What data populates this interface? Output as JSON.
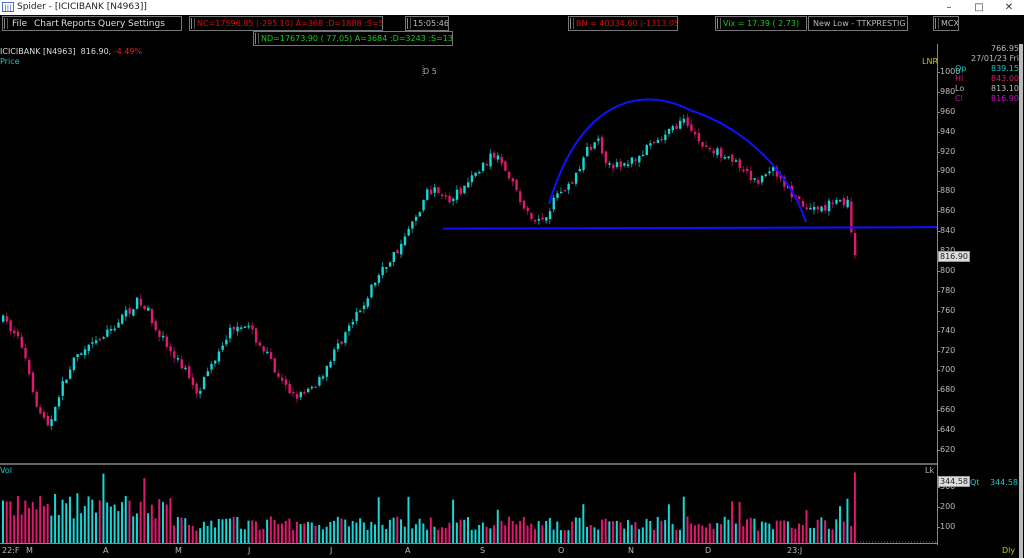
{
  "window": {
    "title": "Spider - [ICICIBANK [N4963]]",
    "app_icon": "spider-app-icon",
    "controls": [
      "minimize",
      "maximize",
      "close"
    ]
  },
  "menu": {
    "items": [
      {
        "label": "File",
        "accel": "F"
      },
      {
        "label": "Chart",
        "accel": "C"
      },
      {
        "label": "Reports",
        "accel": "R"
      },
      {
        "label": "Query",
        "accel": "Q"
      },
      {
        "label": "Settings",
        "accel": "S"
      }
    ]
  },
  "tickers": {
    "nc": "NC=17596.85 (-295.10) A=368 :D=1888 :S=58",
    "nd": "ND=17673.90 (  77.05) A=3684 :D=3243 :S=138",
    "time": "15:05:46",
    "bn": "BN = 40334.60 (-1313.05)",
    "vix": "Vix =   17.39 (   2.73)",
    "scanner": "New Low - TTKPRESTIG",
    "exchange": "MCX"
  },
  "chart": {
    "symbol": "ICICIBANK [N4963]",
    "last": "816.90,",
    "change_pct": "-4.49%",
    "price_label": "Price",
    "volume_label": "Vol",
    "lnr_label": "LNR",
    "lk_label": "Lk",
    "dly_label": "Dly",
    "cursor_label": "D 5",
    "last_price_badge": "816.90",
    "last_volume_badge": "344.58",
    "colors": {
      "up": "#19d6d6",
      "down": "#e0186e",
      "trendline": "#1010ff",
      "background": "#000000"
    }
  },
  "info_panel": {
    "top_value": "766.95",
    "date": "27/01/23 Fri",
    "open_label": "Op",
    "open": "839.15",
    "high_label": "Hi",
    "high": "843.00",
    "low_label": "Lo",
    "low": "813.10",
    "close_label": "Cl",
    "close": "816.90",
    "qty_label": "Qt",
    "qty": "344.58"
  },
  "chart_data": {
    "type": "candlestick",
    "title": "ICICIBANK [N4963] daily",
    "y_axis": {
      "ticks": [
        1000,
        980,
        960,
        940,
        920,
        900,
        880,
        860,
        840,
        820,
        800,
        780,
        760,
        740,
        720,
        700,
        680,
        660,
        640,
        620
      ],
      "range": [
        612,
        1028
      ]
    },
    "volume_axis": {
      "ticks": [
        100,
        200,
        300
      ],
      "unit": "Lk"
    },
    "x_axis": {
      "labels": [
        "22:F",
        "M",
        "A",
        "M",
        "J",
        "J",
        "A",
        "S",
        "O",
        "N",
        "D",
        "23:J"
      ]
    },
    "price_path_keypoints": [
      [
        0,
        752
      ],
      [
        8,
        735
      ],
      [
        12,
        720
      ],
      [
        16,
        690
      ],
      [
        20,
        660
      ],
      [
        26,
        645
      ],
      [
        32,
        680
      ],
      [
        40,
        710
      ],
      [
        50,
        725
      ],
      [
        60,
        740
      ],
      [
        70,
        760
      ],
      [
        76,
        770
      ],
      [
        82,
        760
      ],
      [
        88,
        740
      ],
      [
        96,
        715
      ],
      [
        104,
        700
      ],
      [
        110,
        680
      ],
      [
        116,
        700
      ],
      [
        124,
        730
      ],
      [
        130,
        745
      ],
      [
        136,
        750
      ],
      [
        142,
        735
      ],
      [
        150,
        715
      ],
      [
        156,
        690
      ],
      [
        162,
        680
      ],
      [
        170,
        675
      ],
      [
        178,
        690
      ],
      [
        186,
        715
      ],
      [
        194,
        740
      ],
      [
        202,
        760
      ],
      [
        210,
        790
      ],
      [
        218,
        810
      ],
      [
        226,
        830
      ],
      [
        232,
        850
      ],
      [
        240,
        880
      ],
      [
        246,
        885
      ],
      [
        252,
        870
      ],
      [
        258,
        880
      ],
      [
        266,
        895
      ],
      [
        274,
        912
      ],
      [
        280,
        920
      ],
      [
        286,
        900
      ],
      [
        294,
        865
      ],
      [
        300,
        850
      ],
      [
        306,
        855
      ],
      [
        314,
        880
      ],
      [
        322,
        890
      ],
      [
        330,
        920
      ],
      [
        336,
        935
      ],
      [
        342,
        910
      ],
      [
        350,
        905
      ],
      [
        358,
        915
      ],
      [
        366,
        925
      ],
      [
        374,
        935
      ],
      [
        382,
        950
      ],
      [
        388,
        950
      ],
      [
        394,
        930
      ],
      [
        402,
        920
      ],
      [
        410,
        920
      ],
      [
        418,
        900
      ],
      [
        426,
        890
      ],
      [
        434,
        905
      ],
      [
        440,
        895
      ],
      [
        448,
        872
      ],
      [
        456,
        862
      ],
      [
        464,
        865
      ],
      [
        472,
        875
      ],
      [
        478,
        868
      ],
      [
        480,
        836
      ],
      [
        482,
        816
      ]
    ],
    "annotations": {
      "support_line_price": 844,
      "arc": "rounded-top (cup) drawn from Oct to Dec peaking near 972"
    },
    "last_candle": {
      "open": 839.15,
      "high": 843.0,
      "low": 813.1,
      "close": 816.9,
      "volume_lk": 344.58
    }
  }
}
